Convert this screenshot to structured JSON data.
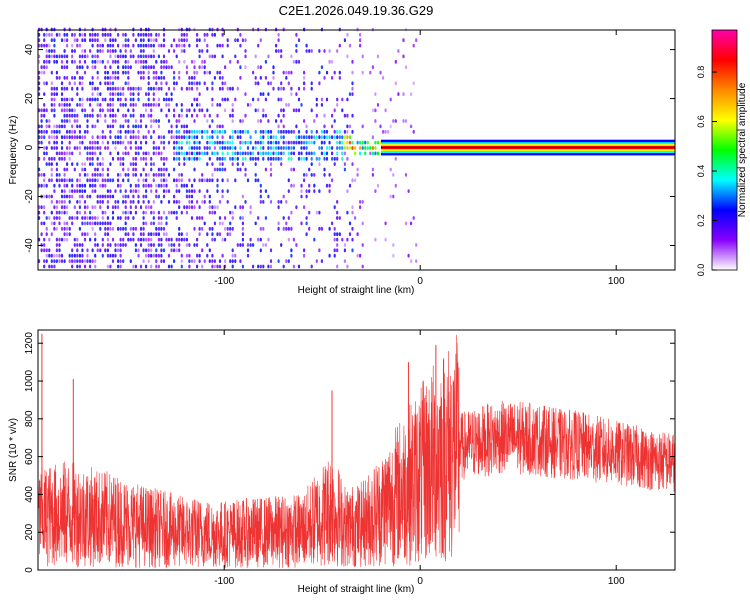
{
  "title": "C2E1.2026.049.19.36.G29",
  "chart_data": [
    {
      "type": "heatmap",
      "name": "spectrogram",
      "xlabel": "Height of straight line (km)",
      "ylabel": "Frequency (Hz)",
      "xlim": [
        -195,
        130
      ],
      "ylim": [
        -50,
        48
      ],
      "xticks": [
        -100,
        0,
        100
      ],
      "yticks": [
        -40,
        -20,
        0,
        20,
        40
      ],
      "dominant_frequency_hz": 0,
      "coherent_signal_start_km": -20,
      "noise_cutoff_km": -35,
      "colorbar": {
        "label": "Normalized spectral amplitude",
        "range": [
          0.0,
          0.97
        ],
        "ticks": [
          0.0,
          0.2,
          0.4,
          0.6,
          0.8
        ],
        "tick_labels": [
          "0.0",
          "0.2",
          "0.4",
          "0.6",
          "0.8"
        ],
        "colors": [
          "#ffffff",
          "#8800ff",
          "#0000ff",
          "#00ffff",
          "#00ff00",
          "#ffff00",
          "#ff8800",
          "#ff0000",
          "#ff00aa"
        ]
      }
    },
    {
      "type": "line",
      "name": "snr",
      "xlabel": "Height of straight line (km)",
      "ylabel": "SNR (10 * v/v)",
      "xlim": [
        -195,
        130
      ],
      "ylim": [
        0,
        1270
      ],
      "xticks": [
        -100,
        0,
        100
      ],
      "yticks": [
        0,
        200,
        400,
        600,
        800,
        1000,
        1200
      ],
      "color": "#ee3333",
      "x": [
        -195,
        -180,
        -160,
        -140,
        -120,
        -100,
        -80,
        -60,
        -45,
        -38,
        -30,
        -20,
        -10,
        0,
        10,
        20,
        30,
        40,
        50,
        60,
        70,
        80,
        90,
        100,
        110,
        120,
        130
      ],
      "mean": [
        280,
        300,
        270,
        230,
        200,
        190,
        200,
        210,
        330,
        230,
        240,
        320,
        420,
        500,
        600,
        650,
        680,
        700,
        700,
        690,
        670,
        660,
        640,
        620,
        600,
        580,
        570
      ],
      "spikes": [
        {
          "x": -193,
          "y": 1250
        },
        {
          "x": -177,
          "y": 1010
        },
        {
          "x": -45,
          "y": 950
        },
        {
          "x": -6,
          "y": 1100
        },
        {
          "x": 8,
          "y": 1190
        }
      ]
    }
  ]
}
